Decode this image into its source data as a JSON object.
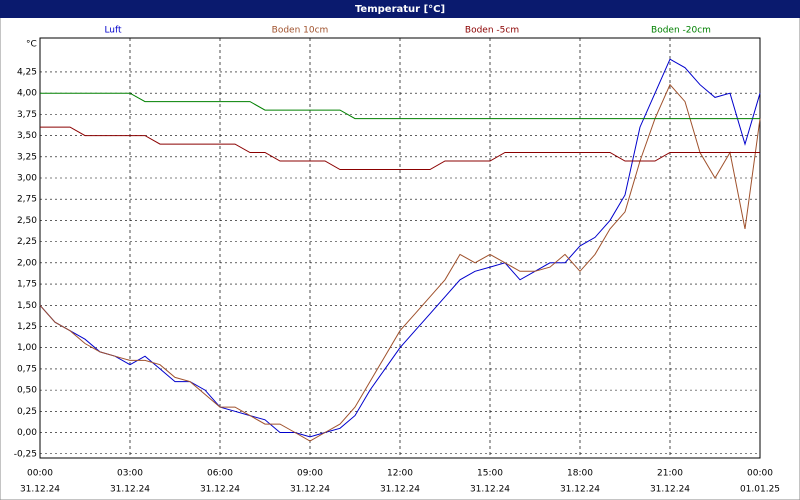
{
  "chart_data": {
    "type": "line",
    "title": "Temperatur [°C]",
    "y_unit": "°C",
    "x": [
      0,
      0.5,
      1,
      1.5,
      2,
      2.5,
      3,
      3.5,
      4,
      4.5,
      5,
      5.5,
      6,
      6.5,
      7,
      7.5,
      8,
      8.5,
      9,
      9.5,
      10,
      10.5,
      11,
      11.5,
      12,
      12.5,
      13,
      13.5,
      14,
      14.5,
      15,
      15.5,
      16,
      16.5,
      17,
      17.5,
      18,
      18.5,
      19,
      19.5,
      20,
      20.5,
      21,
      21.5,
      22,
      22.5,
      23,
      23.5,
      24
    ],
    "series": [
      {
        "name": "Luft",
        "color": "#0000cc",
        "values": [
          1.5,
          1.3,
          1.2,
          1.1,
          0.95,
          0.9,
          0.8,
          0.9,
          0.75,
          0.6,
          0.6,
          0.5,
          0.3,
          0.25,
          0.2,
          0.15,
          0,
          0,
          -0.05,
          0,
          0.05,
          0.2,
          0.5,
          0.75,
          1,
          1.2,
          1.4,
          1.6,
          1.8,
          1.9,
          1.95,
          2,
          1.8,
          1.9,
          2,
          2,
          2.2,
          2.3,
          2.5,
          2.8,
          3.6,
          4,
          4.4,
          4.3,
          4.1,
          3.95,
          4,
          3.4,
          4
        ]
      },
      {
        "name": "Boden 10cm",
        "color": "#a0522d",
        "values": [
          1.5,
          1.3,
          1.2,
          1.05,
          0.95,
          0.9,
          0.85,
          0.85,
          0.8,
          0.65,
          0.6,
          0.45,
          0.3,
          0.3,
          0.2,
          0.1,
          0.1,
          0,
          -0.1,
          0,
          0.1,
          0.3,
          0.6,
          0.9,
          1.2,
          1.4,
          1.6,
          1.8,
          2.1,
          2,
          2.1,
          2,
          1.9,
          1.9,
          1.95,
          2.1,
          1.9,
          2.1,
          2.4,
          2.6,
          3.2,
          3.7,
          4.1,
          3.9,
          3.3,
          3,
          3.3,
          2.4,
          3.7
        ]
      },
      {
        "name": "Boden -5cm",
        "color": "#8b0000",
        "values": [
          3.6,
          3.6,
          3.6,
          3.5,
          3.5,
          3.5,
          3.5,
          3.5,
          3.4,
          3.4,
          3.4,
          3.4,
          3.4,
          3.4,
          3.3,
          3.3,
          3.2,
          3.2,
          3.2,
          3.2,
          3.1,
          3.1,
          3.1,
          3.1,
          3.1,
          3.1,
          3.1,
          3.2,
          3.2,
          3.2,
          3.2,
          3.3,
          3.3,
          3.3,
          3.3,
          3.3,
          3.3,
          3.3,
          3.3,
          3.2,
          3.2,
          3.2,
          3.3,
          3.3,
          3.3,
          3.3,
          3.3,
          3.3,
          3.3
        ]
      },
      {
        "name": "Boden -20cm",
        "color": "#008000",
        "values": [
          4,
          4,
          4,
          4,
          4,
          4,
          4,
          3.9,
          3.9,
          3.9,
          3.9,
          3.9,
          3.9,
          3.9,
          3.9,
          3.8,
          3.8,
          3.8,
          3.8,
          3.8,
          3.8,
          3.7,
          3.7,
          3.7,
          3.7,
          3.7,
          3.7,
          3.7,
          3.7,
          3.7,
          3.7,
          3.7,
          3.7,
          3.7,
          3.7,
          3.7,
          3.7,
          3.7,
          3.7,
          3.7,
          3.7,
          3.7,
          3.7,
          3.7,
          3.7,
          3.7,
          3.7,
          3.7,
          3.7
        ]
      }
    ],
    "xlim": [
      0,
      24
    ],
    "ylim": [
      -0.3,
      4.65
    ],
    "xticks": [
      {
        "value": 0,
        "label": "00:00"
      },
      {
        "value": 3,
        "label": "03:00"
      },
      {
        "value": 6,
        "label": "06:00"
      },
      {
        "value": 9,
        "label": "09:00"
      },
      {
        "value": 12,
        "label": "12:00"
      },
      {
        "value": 15,
        "label": "15:00"
      },
      {
        "value": 18,
        "label": "18:00"
      },
      {
        "value": 21,
        "label": "21:00"
      },
      {
        "value": 24,
        "label": "00:00"
      }
    ],
    "xtick_dates": [
      "31.12.24",
      "31.12.24",
      "31.12.24",
      "31.12.24",
      "31.12.24",
      "31.12.24",
      "31.12.24",
      "31.12.24",
      "01.01.25"
    ],
    "yticks": [
      {
        "value": -0.25,
        "label": "-0,25"
      },
      {
        "value": 0,
        "label": "0,00"
      },
      {
        "value": 0.25,
        "label": "0,25"
      },
      {
        "value": 0.5,
        "label": "0,50"
      },
      {
        "value": 0.75,
        "label": "0,75"
      },
      {
        "value": 1,
        "label": "1,00"
      },
      {
        "value": 1.25,
        "label": "1,25"
      },
      {
        "value": 1.5,
        "label": "1,50"
      },
      {
        "value": 1.75,
        "label": "1,75"
      },
      {
        "value": 2,
        "label": "2,00"
      },
      {
        "value": 2.25,
        "label": "2,25"
      },
      {
        "value": 2.5,
        "label": "2,50"
      },
      {
        "value": 2.75,
        "label": "2,75"
      },
      {
        "value": 3,
        "label": "3,00"
      },
      {
        "value": 3.25,
        "label": "3,25"
      },
      {
        "value": 3.5,
        "label": "3,50"
      },
      {
        "value": 3.75,
        "label": "3,75"
      },
      {
        "value": 4,
        "label": "4,00"
      },
      {
        "value": 4.25,
        "label": "4,25"
      }
    ],
    "grid": true
  }
}
